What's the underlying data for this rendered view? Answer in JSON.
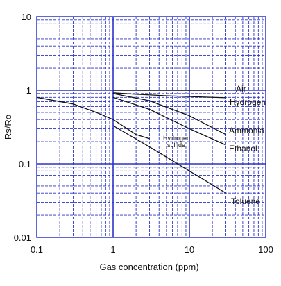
{
  "chart_data": {
    "type": "line",
    "title": "",
    "xlabel": "Gas concentration (ppm)",
    "ylabel": "Rs/Ro",
    "x_scale": "log",
    "y_scale": "log",
    "xlim": [
      0.1,
      100
    ],
    "ylim": [
      0.01,
      10
    ],
    "x_ticks": [
      "0.1",
      "1",
      "10",
      "100"
    ],
    "y_ticks": [
      "10",
      "1",
      "0.1",
      "0.01"
    ],
    "grid": true,
    "colors": {
      "grid": "#2b33c9",
      "frame": "#2b33c9",
      "curve": "#111111"
    },
    "series": [
      {
        "name": "Air",
        "points": [
          [
            1,
            1.0
          ],
          [
            30,
            1.0
          ]
        ]
      },
      {
        "name": "Hydrogen",
        "points": [
          [
            1,
            0.92
          ],
          [
            2,
            0.88
          ],
          [
            5,
            0.84
          ],
          [
            10,
            0.82
          ],
          [
            30,
            0.79
          ]
        ]
      },
      {
        "name": "Ammonia",
        "points": [
          [
            1,
            0.9
          ],
          [
            3,
            0.72
          ],
          [
            10,
            0.45
          ],
          [
            30,
            0.25
          ]
        ]
      },
      {
        "name": "Ethanol",
        "points": [
          [
            1,
            0.8
          ],
          [
            3,
            0.55
          ],
          [
            10,
            0.3
          ],
          [
            30,
            0.18
          ]
        ]
      },
      {
        "name": "Hydrogen sulfide",
        "points": [
          [
            0.1,
            0.8
          ],
          [
            0.3,
            0.65
          ],
          [
            0.6,
            0.5
          ],
          [
            1,
            0.4
          ],
          [
            2,
            0.25
          ],
          [
            3,
            0.22
          ]
        ]
      },
      {
        "name": "Toluene",
        "points": [
          [
            1,
            0.33
          ],
          [
            3,
            0.17
          ],
          [
            10,
            0.08
          ],
          [
            30,
            0.04
          ]
        ]
      }
    ],
    "labels": {
      "air": "Air",
      "hydrogen": "Hydrogen",
      "ammonia": "Ammonia",
      "ethanol": "Ethanol",
      "hydrogen_sulfide_line1": "Hydrogen",
      "hydrogen_sulfide_line2": "sulfide",
      "toluene": "Toluene"
    }
  }
}
